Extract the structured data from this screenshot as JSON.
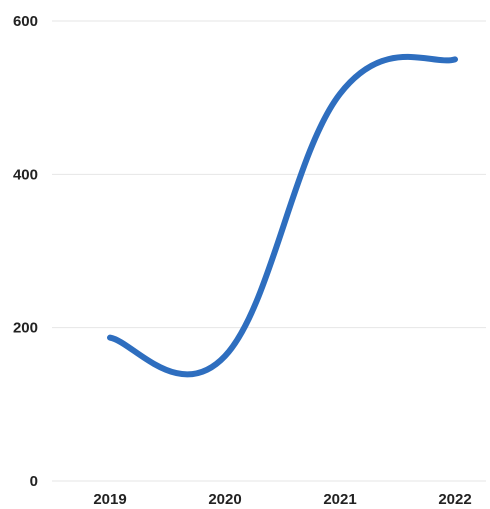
{
  "chart_data": {
    "type": "line",
    "categories": [
      "2019",
      "2020",
      "2021",
      "2022"
    ],
    "series": [
      {
        "values": [
          187,
          163,
          505,
          550
        ]
      }
    ],
    "ylim": [
      0,
      600
    ],
    "yticks": [
      0,
      200,
      400,
      600
    ],
    "ytick_labels": [
      "0",
      "200",
      "400",
      "600"
    ],
    "grid": true,
    "smooth": true,
    "line_color": "#2e6ebf",
    "grid_color": "#e6e6e6"
  }
}
